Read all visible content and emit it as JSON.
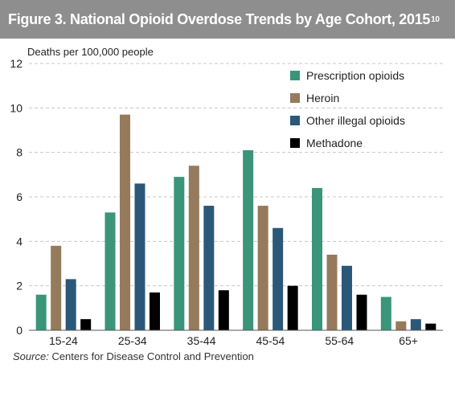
{
  "figure": {
    "title": "Figure 3. National Opioid Overdose Trends by Age Cohort, 2015",
    "title_superscript": "10",
    "source_label": "Source:",
    "source_text": "Centers for Disease Control and Prevention"
  },
  "chart_data": {
    "type": "bar",
    "ylabel": "Deaths per 100,000 people",
    "xlabel": "",
    "ylim": [
      0,
      12
    ],
    "yticks": [
      0,
      2,
      4,
      6,
      8,
      10,
      12
    ],
    "grid": true,
    "legend_position": "top-right",
    "categories": [
      "15-24",
      "25-34",
      "35-44",
      "45-54",
      "55-64",
      "65+"
    ],
    "series": [
      {
        "name": "Prescription opioids",
        "color": "#3a9579",
        "values": [
          1.6,
          5.3,
          6.9,
          8.1,
          6.4,
          1.5
        ]
      },
      {
        "name": "Heroin",
        "color": "#957a5b",
        "values": [
          3.8,
          9.7,
          7.4,
          5.6,
          3.4,
          0.4
        ]
      },
      {
        "name": "Other illegal opioids",
        "color": "#2b5878",
        "values": [
          2.3,
          6.6,
          5.6,
          4.6,
          2.9,
          0.5
        ]
      },
      {
        "name": "Methadone",
        "color": "#000000",
        "values": [
          0.5,
          1.7,
          1.8,
          2.0,
          1.6,
          0.3
        ]
      }
    ]
  }
}
